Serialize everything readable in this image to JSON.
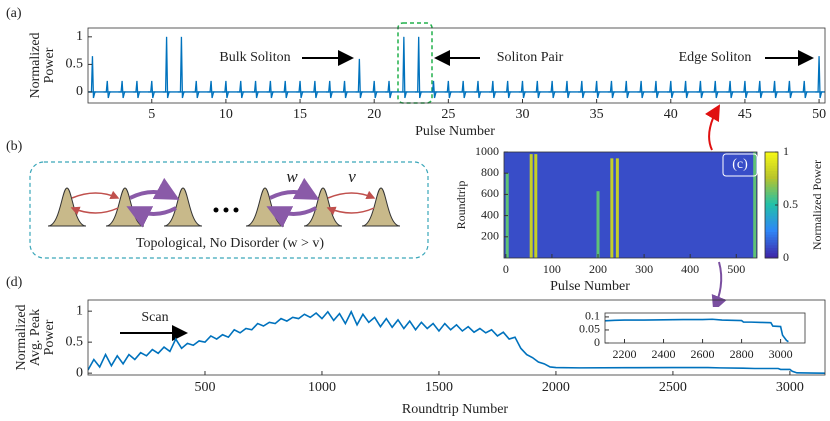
{
  "panel_labels": [
    "(a)",
    "(b)",
    "(c)",
    "(d)"
  ],
  "diagram": {
    "w_label": "w",
    "v_label": "v",
    "caption": "Topological, No Disorder (w > v)"
  },
  "chart_data": [
    {
      "type": "spike",
      "xlabel": "Pulse Number",
      "ylabel": [
        "Normalized",
        "Power"
      ],
      "color": "#0072bd",
      "x": [
        1,
        2,
        3,
        4,
        5,
        6,
        7,
        8,
        9,
        10,
        11,
        12,
        13,
        14,
        15,
        16,
        17,
        18,
        19,
        20,
        21,
        22,
        23,
        24,
        25,
        26,
        27,
        28,
        29,
        30,
        31,
        32,
        33,
        34,
        35,
        36,
        37,
        38,
        39,
        40,
        41,
        42,
        43,
        44,
        45,
        46,
        47,
        48,
        49,
        50
      ],
      "values": [
        0.65,
        0.2,
        0.2,
        0.2,
        0.2,
        1,
        1,
        0.2,
        0.2,
        0.2,
        0.2,
        0.2,
        0.2,
        0.2,
        0.2,
        0.2,
        0.2,
        0.2,
        0.6,
        0.2,
        0.2,
        1,
        1,
        0.2,
        0.2,
        0.2,
        0.2,
        0.2,
        0.2,
        0.2,
        0.2,
        0.2,
        0.2,
        0.2,
        0.2,
        0.2,
        0.2,
        0.2,
        0.2,
        0.2,
        0.2,
        0.2,
        0.2,
        0.2,
        0.2,
        0.2,
        0.2,
        0.2,
        0.2,
        0.65
      ],
      "xlim": [
        0.7,
        50.4
      ],
      "ylim": [
        -0.2,
        1.16
      ],
      "xticks": [
        5,
        10,
        15,
        20,
        25,
        30,
        35,
        40,
        45,
        50
      ],
      "yticks": [
        0,
        0.5,
        1
      ],
      "annotations": [
        {
          "text": "Bulk Soliton"
        },
        {
          "text": "Soliton Pair"
        },
        {
          "text": "Edge Soliton"
        }
      ]
    },
    {
      "type": "heatmap",
      "xlabel": "Pulse Number",
      "ylabel": [
        "Roundtrip"
      ],
      "xlim": [
        -4,
        545
      ],
      "ylim": [
        0,
        1000
      ],
      "xticks": [
        0,
        100,
        200,
        300,
        400,
        500
      ],
      "yticks": [
        200,
        400,
        600,
        800,
        1000
      ],
      "background": 0.1,
      "stripes": {
        "x": [
          3,
          55,
          65,
          200,
          230,
          242,
          540
        ],
        "end": [
          800,
          980,
          980,
          630,
          940,
          940,
          1000
        ],
        "values": [
          0.6,
          0.8,
          0.8,
          0.6,
          0.8,
          0.8,
          0.6
        ]
      },
      "clim": [
        0,
        1
      ],
      "cticks": [
        0,
        0.5,
        1
      ],
      "clabel": "Normalized Power",
      "colormap": [
        "#3e26a8",
        "#2e87f7",
        "#23c1a8",
        "#b8c42b",
        "#f9fb15"
      ]
    },
    {
      "type": "line",
      "xlabel": "Roundtrip Number",
      "ylabel": [
        "Normalized",
        "Avg. Peak",
        "Power"
      ],
      "color": "#0072bd",
      "annotations": [
        {
          "text": "Scan"
        }
      ],
      "x": [
        0,
        25,
        50,
        75,
        100,
        125,
        150,
        175,
        200,
        225,
        250,
        275,
        300,
        325,
        350,
        375,
        400,
        425,
        450,
        475,
        500,
        525,
        550,
        575,
        600,
        625,
        650,
        675,
        700,
        725,
        750,
        775,
        800,
        825,
        850,
        875,
        900,
        925,
        950,
        975,
        1000,
        1025,
        1050,
        1075,
        1100,
        1125,
        1150,
        1175,
        1200,
        1225,
        1250,
        1275,
        1300,
        1325,
        1350,
        1375,
        1400,
        1425,
        1450,
        1475,
        1500,
        1525,
        1550,
        1575,
        1600,
        1625,
        1650,
        1675,
        1700,
        1725,
        1750,
        1775,
        1800,
        1825,
        1850,
        1875,
        1900,
        1925,
        1950,
        1975,
        2000,
        2100,
        2300,
        2500,
        2650,
        2700,
        2800,
        2850,
        2950,
        2960,
        3000,
        3010,
        3030,
        3100,
        3150
      ],
      "values": [
        0.05,
        0.22,
        0.1,
        0.3,
        0.12,
        0.28,
        0.15,
        0.3,
        0.22,
        0.33,
        0.28,
        0.38,
        0.32,
        0.42,
        0.35,
        0.55,
        0.4,
        0.48,
        0.45,
        0.52,
        0.5,
        0.6,
        0.55,
        0.62,
        0.58,
        0.7,
        0.65,
        0.72,
        0.7,
        0.8,
        0.76,
        0.82,
        0.8,
        0.88,
        0.84,
        0.9,
        0.88,
        0.95,
        0.9,
        0.97,
        0.88,
        0.99,
        0.85,
        0.96,
        0.8,
        0.99,
        0.78,
        0.95,
        0.82,
        0.9,
        0.75,
        0.88,
        0.74,
        0.86,
        0.72,
        0.84,
        0.7,
        0.82,
        0.72,
        0.8,
        0.68,
        0.8,
        0.7,
        0.78,
        0.68,
        0.75,
        0.66,
        0.72,
        0.65,
        0.7,
        0.6,
        0.66,
        0.55,
        0.58,
        0.4,
        0.3,
        0.25,
        0.18,
        0.15,
        0.1,
        0.09,
        0.085,
        0.088,
        0.09,
        0.09,
        0.085,
        0.08,
        0.075,
        0.075,
        0.06,
        0.06,
        0.03,
        0.005,
        0.002,
        0
      ],
      "xlim": [
        0,
        3150
      ],
      "ylim": [
        -0.03,
        1.18
      ],
      "xticks": [
        500,
        1000,
        1500,
        2000,
        2500,
        3000
      ],
      "yticks": [
        0,
        0.5,
        1
      ]
    },
    {
      "type": "line",
      "color": "#0072bd",
      "x": [
        2100,
        2150,
        2200,
        2300,
        2400,
        2500,
        2600,
        2650,
        2700,
        2750,
        2800,
        2810,
        2850,
        2900,
        2950,
        2960,
        3000,
        3010,
        3030,
        3040
      ],
      "values": [
        0.085,
        0.087,
        0.088,
        0.088,
        0.089,
        0.09,
        0.09,
        0.091,
        0.088,
        0.087,
        0.086,
        0.08,
        0.08,
        0.079,
        0.078,
        0.065,
        0.063,
        0.03,
        0.01,
        0.005
      ],
      "xlim": [
        2100,
        3125
      ],
      "ylim": [
        0,
        0.115
      ],
      "xticks": [
        2200,
        2400,
        2600,
        2800,
        3000
      ],
      "yticks": [
        0,
        0.05,
        0.1
      ]
    }
  ]
}
